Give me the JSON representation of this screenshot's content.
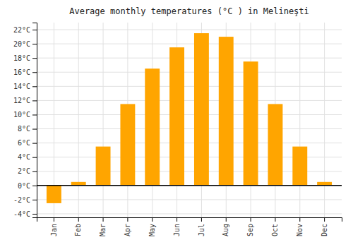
{
  "chart_data": {
    "type": "bar",
    "title": "Average monthly temperatures (°C ) in Melineşti",
    "categories": [
      "Jan",
      "Feb",
      "Mar",
      "Apr",
      "May",
      "Jun",
      "Jul",
      "Aug",
      "Sep",
      "Oct",
      "Nov",
      "Dec"
    ],
    "values": [
      -2.5,
      0.5,
      5.5,
      11.5,
      16.5,
      19.5,
      21.5,
      21.0,
      17.5,
      11.5,
      5.5,
      0.5
    ],
    "color": "#FFA500",
    "ylim": [
      -4.5,
      23
    ],
    "yticks": [
      {
        "value": -4,
        "label": "-4°C"
      },
      {
        "value": -2,
        "label": "-2°C"
      },
      {
        "value": 0,
        "label": "0°C"
      },
      {
        "value": 2,
        "label": "2°C"
      },
      {
        "value": 4,
        "label": "4°C"
      },
      {
        "value": 6,
        "label": "6°C"
      },
      {
        "value": 8,
        "label": "8°C"
      },
      {
        "value": 10,
        "label": "10°C"
      },
      {
        "value": 12,
        "label": "12°C"
      },
      {
        "value": 14,
        "label": "14°C"
      },
      {
        "value": 16,
        "label": "16°C"
      },
      {
        "value": 18,
        "label": "18°C"
      },
      {
        "value": 20,
        "label": "20°C"
      },
      {
        "value": 22,
        "label": "22°C"
      }
    ],
    "grid": true
  }
}
